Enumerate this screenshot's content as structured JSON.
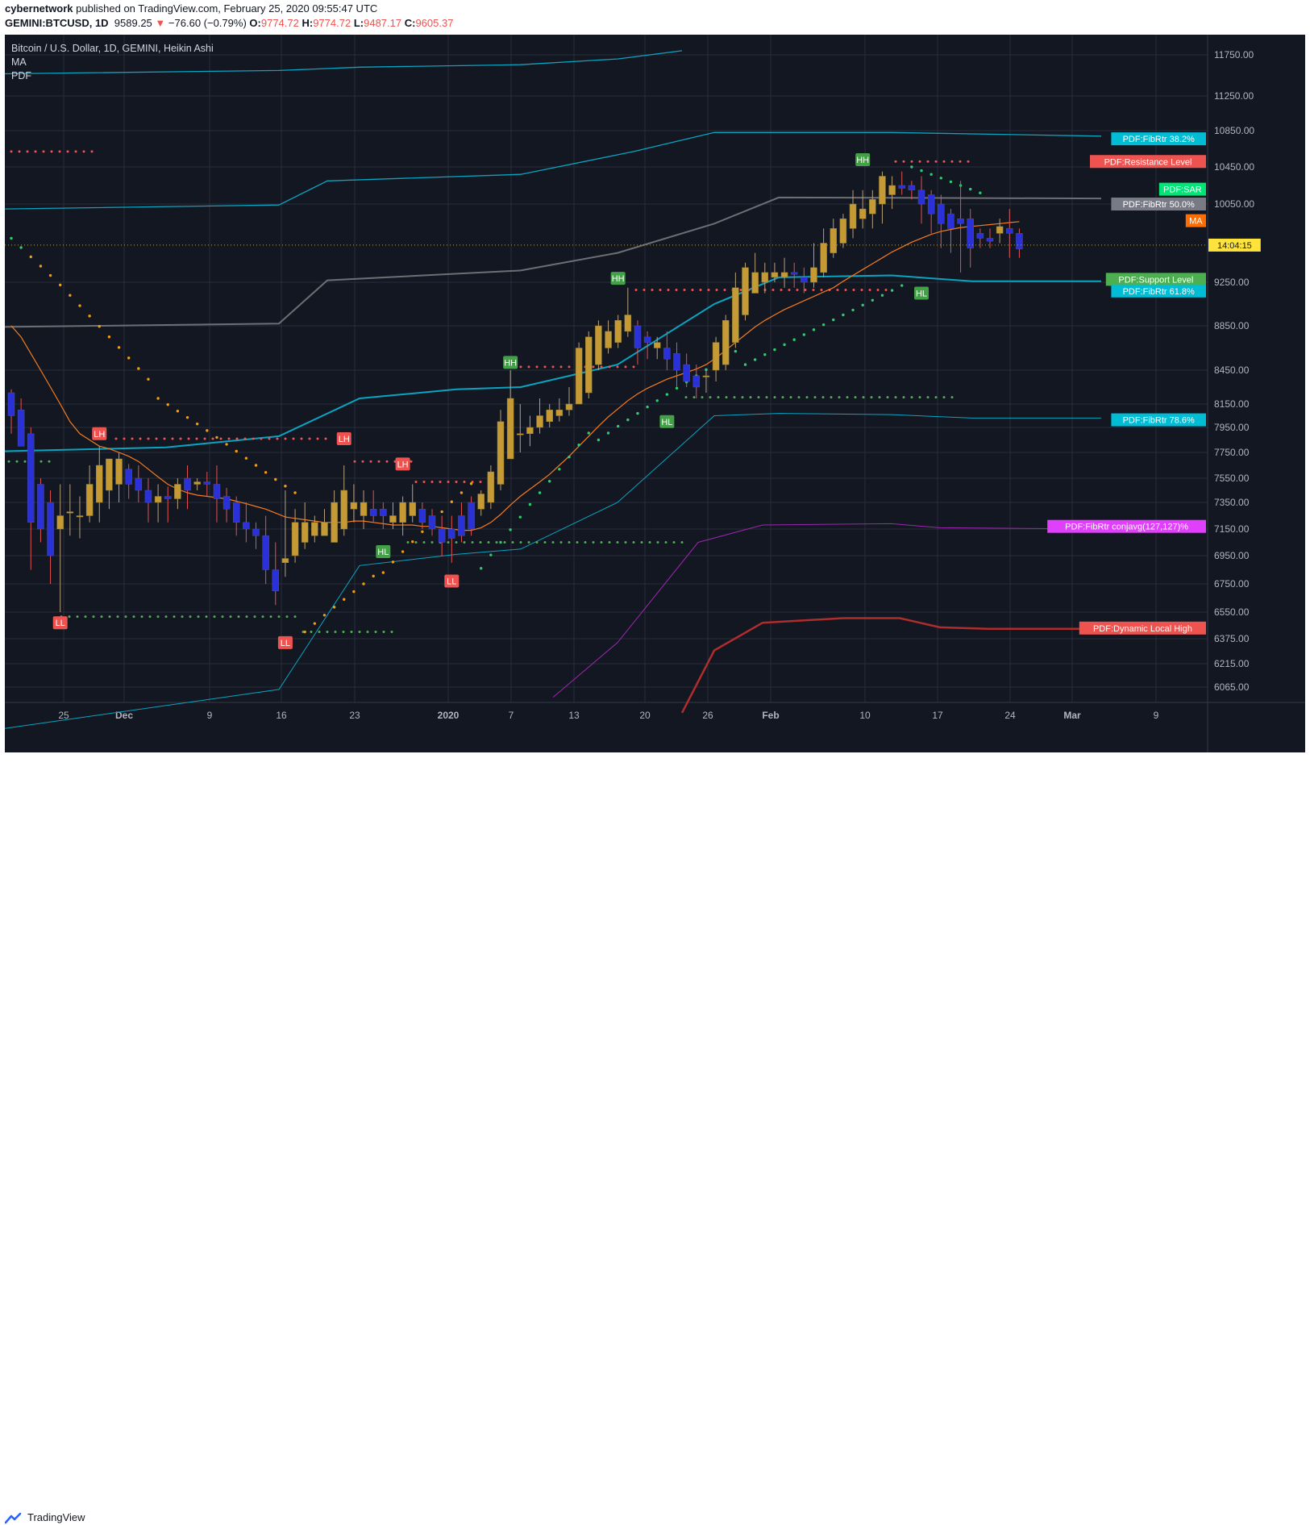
{
  "header": {
    "author": "cybernetwork",
    "published": "published on TradingView.com, February 25, 2020 09:55:47 UTC",
    "symbol": "GEMINI:BTCUSD, 1D",
    "price": "9589.25",
    "change": "−76.60 (−0.79%)",
    "open": "9774.72",
    "high": "9774.72",
    "low": "9487.17",
    "close": "9605.37"
  },
  "legend": {
    "title": "Bitcoin / U.S. Dollar, 1D, GEMINI, Heikin Ashi",
    "items": [
      "MA",
      "PDF"
    ]
  },
  "footer": {
    "brand": "TradingView"
  },
  "colors": {
    "background": "#131722",
    "grid": "#2a2e39",
    "bull": "#c59a34",
    "bear": "#2b31d9",
    "ma": "#f57c1f",
    "fib": "#0aa4c1",
    "fib_grey": "#6e6f75",
    "purple": "#9c27b0",
    "dynamic_high": "#b02d2d",
    "resistance": "#ef5350",
    "support": "#4caf50",
    "sar": "#2ecc71"
  },
  "chart_data": {
    "type": "candlestick",
    "title": "Bitcoin / U.S. Dollar, 1D, GEMINI, Heikin Ashi",
    "y_ticks": [
      "11750.00",
      "11250.00",
      "10850.00",
      "10450.00",
      "10050.00",
      "9250.00",
      "8850.00",
      "8450.00",
      "8150.00",
      "7950.00",
      "7750.00",
      "7550.00",
      "7350.00",
      "7150.00",
      "6950.00",
      "6750.00",
      "6550.00",
      "6375.00",
      "6215.00",
      "6065.00"
    ],
    "x_ticks": [
      "25",
      "Dec",
      "9",
      "16",
      "23",
      "2020",
      "7",
      "13",
      "20",
      "26",
      "Feb",
      "10",
      "17",
      "24",
      "Mar",
      "9"
    ],
    "candles": [
      {
        "o": 8250,
        "h": 8280,
        "l": 7900,
        "c": 8050
      },
      {
        "o": 8100,
        "h": 8200,
        "l": 7800,
        "c": 7800
      },
      {
        "o": 7900,
        "h": 7950,
        "l": 6850,
        "c": 7200
      },
      {
        "o": 7500,
        "h": 7550,
        "l": 7050,
        "c": 7150
      },
      {
        "o": 7350,
        "h": 7450,
        "l": 6750,
        "c": 6950
      },
      {
        "o": 7150,
        "h": 7500,
        "l": 6550,
        "c": 7250
      },
      {
        "o": 7270,
        "h": 7500,
        "l": 7100,
        "c": 7280
      },
      {
        "o": 7250,
        "h": 7400,
        "l": 7080,
        "c": 7250
      },
      {
        "o": 7250,
        "h": 7650,
        "l": 7200,
        "c": 7500
      },
      {
        "o": 7350,
        "h": 7800,
        "l": 7200,
        "c": 7650
      },
      {
        "o": 7450,
        "h": 7700,
        "l": 7300,
        "c": 7700
      },
      {
        "o": 7500,
        "h": 7750,
        "l": 7350,
        "c": 7700
      },
      {
        "o": 7620,
        "h": 7660,
        "l": 7380,
        "c": 7500
      },
      {
        "o": 7550,
        "h": 7650,
        "l": 7350,
        "c": 7450
      },
      {
        "o": 7450,
        "h": 7550,
        "l": 7200,
        "c": 7350
      },
      {
        "o": 7350,
        "h": 7500,
        "l": 7200,
        "c": 7400
      },
      {
        "o": 7400,
        "h": 7480,
        "l": 7200,
        "c": 7380
      },
      {
        "o": 7380,
        "h": 7550,
        "l": 7300,
        "c": 7500
      },
      {
        "o": 7550,
        "h": 7650,
        "l": 7300,
        "c": 7450
      },
      {
        "o": 7500,
        "h": 7550,
        "l": 7450,
        "c": 7520
      },
      {
        "o": 7520,
        "h": 7600,
        "l": 7400,
        "c": 7500
      },
      {
        "o": 7500,
        "h": 7650,
        "l": 7200,
        "c": 7380
      },
      {
        "o": 7400,
        "h": 7470,
        "l": 7200,
        "c": 7300
      },
      {
        "o": 7350,
        "h": 7400,
        "l": 7100,
        "c": 7200
      },
      {
        "o": 7200,
        "h": 7350,
        "l": 7050,
        "c": 7150
      },
      {
        "o": 7150,
        "h": 7200,
        "l": 7000,
        "c": 7100
      },
      {
        "o": 7100,
        "h": 7250,
        "l": 6750,
        "c": 6850
      },
      {
        "o": 6850,
        "h": 7050,
        "l": 6600,
        "c": 6700
      },
      {
        "o": 6900,
        "h": 7450,
        "l": 6800,
        "c": 6930
      },
      {
        "o": 6950,
        "h": 7300,
        "l": 6900,
        "c": 7200
      },
      {
        "o": 7050,
        "h": 7350,
        "l": 7000,
        "c": 7200
      },
      {
        "o": 7100,
        "h": 7250,
        "l": 7050,
        "c": 7200
      },
      {
        "o": 7100,
        "h": 7300,
        "l": 7100,
        "c": 7200
      },
      {
        "o": 7050,
        "h": 7450,
        "l": 7050,
        "c": 7350
      },
      {
        "o": 7150,
        "h": 7650,
        "l": 7100,
        "c": 7450
      },
      {
        "o": 7300,
        "h": 7500,
        "l": 7200,
        "c": 7350
      },
      {
        "o": 7250,
        "h": 7450,
        "l": 7150,
        "c": 7350
      },
      {
        "o": 7300,
        "h": 7450,
        "l": 7200,
        "c": 7250
      },
      {
        "o": 7300,
        "h": 7350,
        "l": 7150,
        "c": 7250
      },
      {
        "o": 7200,
        "h": 7350,
        "l": 7150,
        "c": 7250
      },
      {
        "o": 7200,
        "h": 7400,
        "l": 7100,
        "c": 7350
      },
      {
        "o": 7250,
        "h": 7500,
        "l": 7200,
        "c": 7350
      },
      {
        "o": 7300,
        "h": 7350,
        "l": 7150,
        "c": 7200
      },
      {
        "o": 7250,
        "h": 7300,
        "l": 7100,
        "c": 7150
      },
      {
        "o": 7150,
        "h": 7250,
        "l": 6950,
        "c": 7050
      },
      {
        "o": 7150,
        "h": 7250,
        "l": 6900,
        "c": 7080
      },
      {
        "o": 7250,
        "h": 7350,
        "l": 7050,
        "c": 7100
      },
      {
        "o": 7350,
        "h": 7400,
        "l": 7100,
        "c": 7150
      },
      {
        "o": 7300,
        "h": 7450,
        "l": 7250,
        "c": 7420
      },
      {
        "o": 7350,
        "h": 7650,
        "l": 7300,
        "c": 7600
      },
      {
        "o": 7500,
        "h": 8100,
        "l": 7450,
        "c": 8000
      },
      {
        "o": 7700,
        "h": 8450,
        "l": 7700,
        "c": 8200
      },
      {
        "o": 7900,
        "h": 8150,
        "l": 7750,
        "c": 7900
      },
      {
        "o": 7900,
        "h": 8050,
        "l": 7800,
        "c": 7950
      },
      {
        "o": 7950,
        "h": 8200,
        "l": 7900,
        "c": 8050
      },
      {
        "o": 8000,
        "h": 8150,
        "l": 7950,
        "c": 8100
      },
      {
        "o": 8050,
        "h": 8200,
        "l": 8000,
        "c": 8100
      },
      {
        "o": 8100,
        "h": 8300,
        "l": 8050,
        "c": 8150
      },
      {
        "o": 8150,
        "h": 8700,
        "l": 8150,
        "c": 8650
      },
      {
        "o": 8250,
        "h": 8800,
        "l": 8200,
        "c": 8750
      },
      {
        "o": 8500,
        "h": 8900,
        "l": 8450,
        "c": 8850
      },
      {
        "o": 8650,
        "h": 8900,
        "l": 8600,
        "c": 8800
      },
      {
        "o": 8700,
        "h": 8950,
        "l": 8650,
        "c": 8900
      },
      {
        "o": 8800,
        "h": 9200,
        "l": 8750,
        "c": 8950
      },
      {
        "o": 8850,
        "h": 8900,
        "l": 8500,
        "c": 8650
      },
      {
        "o": 8750,
        "h": 8800,
        "l": 8550,
        "c": 8700
      },
      {
        "o": 8650,
        "h": 8750,
        "l": 8550,
        "c": 8700
      },
      {
        "o": 8650,
        "h": 8800,
        "l": 8450,
        "c": 8550
      },
      {
        "o": 8600,
        "h": 8700,
        "l": 8300,
        "c": 8450
      },
      {
        "o": 8500,
        "h": 8600,
        "l": 8300,
        "c": 8350
      },
      {
        "o": 8400,
        "h": 8500,
        "l": 8200,
        "c": 8300
      },
      {
        "o": 8400,
        "h": 8450,
        "l": 8250,
        "c": 8400
      },
      {
        "o": 8450,
        "h": 8750,
        "l": 8350,
        "c": 8700
      },
      {
        "o": 8500,
        "h": 8950,
        "l": 8450,
        "c": 8900
      },
      {
        "o": 8700,
        "h": 9350,
        "l": 8650,
        "c": 9200
      },
      {
        "o": 8950,
        "h": 9450,
        "l": 8900,
        "c": 9400
      },
      {
        "o": 9150,
        "h": 9550,
        "l": 9150,
        "c": 9350
      },
      {
        "o": 9250,
        "h": 9450,
        "l": 9150,
        "c": 9350
      },
      {
        "o": 9300,
        "h": 9450,
        "l": 9250,
        "c": 9350
      },
      {
        "o": 9300,
        "h": 9500,
        "l": 9200,
        "c": 9350
      },
      {
        "o": 9350,
        "h": 9450,
        "l": 9200,
        "c": 9330
      },
      {
        "o": 9300,
        "h": 9400,
        "l": 9150,
        "c": 9250
      },
      {
        "o": 9250,
        "h": 9650,
        "l": 9200,
        "c": 9400
      },
      {
        "o": 9350,
        "h": 9800,
        "l": 9300,
        "c": 9650
      },
      {
        "o": 9550,
        "h": 9900,
        "l": 9500,
        "c": 9800
      },
      {
        "o": 9650,
        "h": 9950,
        "l": 9600,
        "c": 9900
      },
      {
        "o": 9800,
        "h": 10200,
        "l": 9700,
        "c": 10050
      },
      {
        "o": 9900,
        "h": 10200,
        "l": 9800,
        "c": 10000
      },
      {
        "o": 9950,
        "h": 10200,
        "l": 9800,
        "c": 10100
      },
      {
        "o": 10050,
        "h": 10400,
        "l": 9850,
        "c": 10350
      },
      {
        "o": 10150,
        "h": 10350,
        "l": 10000,
        "c": 10250
      },
      {
        "o": 10250,
        "h": 10400,
        "l": 10150,
        "c": 10220
      },
      {
        "o": 10250,
        "h": 10300,
        "l": 10100,
        "c": 10200
      },
      {
        "o": 10200,
        "h": 10350,
        "l": 9850,
        "c": 10050
      },
      {
        "o": 10150,
        "h": 10200,
        "l": 9750,
        "c": 9950
      },
      {
        "o": 10050,
        "h": 10150,
        "l": 9600,
        "c": 9850
      },
      {
        "o": 9950,
        "h": 10000,
        "l": 9550,
        "c": 9800
      },
      {
        "o": 9900,
        "h": 10300,
        "l": 9350,
        "c": 9850
      },
      {
        "o": 9900,
        "h": 10000,
        "l": 9400,
        "c": 9600
      },
      {
        "o": 9750,
        "h": 9800,
        "l": 9600,
        "c": 9700
      },
      {
        "o": 9700,
        "h": 9800,
        "l": 9600,
        "c": 9670
      },
      {
        "o": 9750,
        "h": 9900,
        "l": 9650,
        "c": 9820
      },
      {
        "o": 9800,
        "h": 10000,
        "l": 9500,
        "c": 9750
      },
      {
        "o": 9750,
        "h": 9800,
        "l": 9500,
        "c": 9590
      }
    ],
    "labels": [
      {
        "text": "PDF:FibRtr 38.2%",
        "value": 10760,
        "color": "#00bcd4"
      },
      {
        "text": "PDF:Resistance Level",
        "value": 10510,
        "color": "#ef5350"
      },
      {
        "text": "PDF:SAR",
        "value": 10210,
        "color": "#00e676"
      },
      {
        "text": "PDF:FibRtr 50.0%",
        "value": 10050,
        "color": "#787b86"
      },
      {
        "text": "MA",
        "value": 9880,
        "color": "#ff6d00"
      },
      {
        "text": "14:04:15",
        "value": 9630,
        "color": "#fde33b"
      },
      {
        "text": "PDF:Support Level",
        "value": 9280,
        "color": "#4caf50"
      },
      {
        "text": "PDF:FibRtr 61.8%",
        "value": 9170,
        "color": "#00bcd4"
      },
      {
        "text": "PDF:FibRtr 78.6%",
        "value": 8015,
        "color": "#00bcd4"
      },
      {
        "text": "PDF:FibRtr conjavg(127,127)%",
        "value": 7170,
        "color": "#e040fb"
      },
      {
        "text": "PDF:Dynamic Local High",
        "value": 6445,
        "color": "#ef5350"
      }
    ],
    "pivots": [
      {
        "text": "LL",
        "bar": 5,
        "value": 6480,
        "kind": "low"
      },
      {
        "text": "LH",
        "bar": 9,
        "value": 7900,
        "kind": "high"
      },
      {
        "text": "LL",
        "bar": 28,
        "value": 6350,
        "kind": "low"
      },
      {
        "text": "LH",
        "bar": 34,
        "value": 7860,
        "kind": "high"
      },
      {
        "text": "HL",
        "bar": 38,
        "value": 6980,
        "kind": "low"
      },
      {
        "text": "LH",
        "bar": 40,
        "value": 7660,
        "kind": "high"
      },
      {
        "text": "LL",
        "bar": 45,
        "value": 6770,
        "kind": "low"
      },
      {
        "text": "HH",
        "bar": 51,
        "value": 8520,
        "kind": "high"
      },
      {
        "text": "HH",
        "bar": 62,
        "value": 9290,
        "kind": "high"
      },
      {
        "text": "HL",
        "bar": 67,
        "value": 8000,
        "kind": "low"
      },
      {
        "text": "HH",
        "bar": 87,
        "value": 10530,
        "kind": "high"
      },
      {
        "text": "HL",
        "bar": 93,
        "value": 9150,
        "kind": "low"
      }
    ]
  }
}
